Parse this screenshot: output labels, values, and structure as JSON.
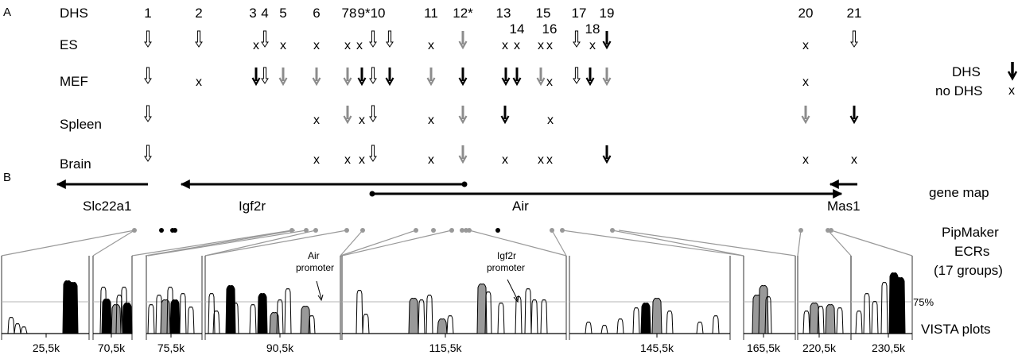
{
  "panel_labels": [
    "A",
    "B"
  ],
  "dhs_header": "DHS",
  "dhs_numbers": [
    {
      "n": "1",
      "row": 0
    },
    {
      "n": "2",
      "row": 0
    },
    {
      "n": "3",
      "row": 0
    },
    {
      "n": "4",
      "row": 0
    },
    {
      "n": "5",
      "row": 0
    },
    {
      "n": "6",
      "row": 0
    },
    {
      "n": "78",
      "row": 0
    },
    {
      "n": "9*10",
      "row": 0
    },
    {
      "n": "11",
      "row": 0
    },
    {
      "n": "12*",
      "row": 0
    },
    {
      "n": "13",
      "row": 0
    },
    {
      "n": "14",
      "row": 1
    },
    {
      "n": "15",
      "row": 0
    },
    {
      "n": "16",
      "row": 1
    },
    {
      "n": "17",
      "row": 0
    },
    {
      "n": "18",
      "row": 1
    },
    {
      "n": "19",
      "row": 0
    },
    {
      "n": "20",
      "row": 0
    },
    {
      "n": "21",
      "row": 0
    }
  ],
  "tissues": [
    "ES",
    "MEF",
    "Spleen",
    "Brain"
  ],
  "dhs_marks": [
    [
      "o",
      "o",
      "x",
      "o",
      "x",
      "x",
      "x",
      "x",
      "o",
      "o",
      "x",
      "g",
      "x",
      "x",
      "x",
      "x",
      "o",
      "x",
      "k",
      "x",
      "o"
    ],
    [
      "o",
      "x",
      "k",
      "o",
      "g",
      "g",
      "g",
      "k",
      "o",
      "k",
      "g",
      "k",
      "k",
      "k",
      "g",
      "x",
      "o",
      "k",
      "g",
      "x"
    ],
    [
      "o",
      "x",
      "g",
      "x",
      "o",
      "x",
      "g",
      "k",
      "x",
      "g",
      "k"
    ],
    [
      "o",
      "x",
      "x",
      "x",
      "o",
      "x",
      "g",
      "x",
      "x",
      "x",
      "k",
      "x",
      "x"
    ]
  ],
  "legend": {
    "dhs_label": "DHS",
    "no_dhs_label": "no DHS",
    "x_symbol": "x"
  },
  "genes": [
    "Slc22a1",
    "Igf2r",
    "Air",
    "Mas1"
  ],
  "track_labels": {
    "gene_map": "gene map",
    "pipmaker_lines": [
      "PipMaker",
      "ECRs",
      "(17 groups)"
    ],
    "vista": "VISTA plots"
  },
  "annotations": {
    "air_promoter": [
      "Air",
      "promoter"
    ],
    "igf2r_promoter": [
      "Igf2r",
      "promoter"
    ]
  },
  "threshold_label": "75%",
  "vista_ticks": [
    "25,5k",
    "70,5k",
    "75,5k",
    "90,5k",
    "115,5k",
    "145,5k",
    "165,5k",
    "220,5k",
    "230,5k"
  ],
  "colors": {
    "black": "#000000",
    "gray": "#8c8c8c",
    "line_gray": "#999999",
    "threshold": "#b4b4b4"
  }
}
